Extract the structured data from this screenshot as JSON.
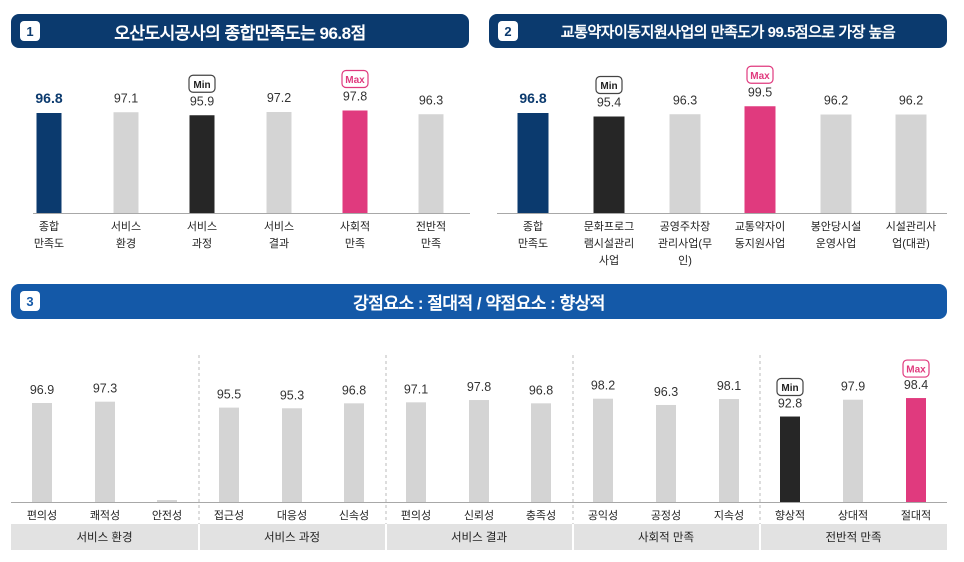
{
  "colors": {
    "banner_dark": "#0b3a6e",
    "banner_blue": "#1459a8",
    "overall_bar": "#0b3a6e",
    "min_bar": "#262626",
    "max_bar": "#e03a7e",
    "default_bar": "#d4d4d4",
    "baseline": "#a8a8a8",
    "group_band": "#e2e2e2"
  },
  "banners": [
    {
      "num": "1",
      "title": "오산도시공사의 종합만족도는 96.8점"
    },
    {
      "num": "2",
      "title": "교통약자이동지원사업의 만족도가 99.5점으로 가장 높음"
    },
    {
      "num": "3",
      "title": "강점요소 : 절대적 / 약점요소 : 향상적"
    }
  ],
  "badges": {
    "min": "Min",
    "max": "Max"
  },
  "chart_data": [
    {
      "type": "bar",
      "title": "오산도시공사의 종합만족도는 96.8점",
      "categories": [
        "종합\n만족도",
        "서비스\n환경",
        "서비스\n과정",
        "서비스\n결과",
        "사회적\n만족",
        "전반적\n만족"
      ],
      "values": [
        96.8,
        97.1,
        95.9,
        97.2,
        97.8,
        96.3
      ],
      "highlight": [
        "overall",
        "default",
        "min",
        "default",
        "max",
        "default"
      ],
      "xlabel": "",
      "ylabel": "",
      "grid": false
    },
    {
      "type": "bar",
      "title": "교통약자이동지원사업의 만족도가 99.5점으로 가장 높음",
      "categories": [
        "종합\n만족도",
        "문화프로그\n램시설관리\n사업",
        "공영주차장\n관리사업(무\n인)",
        "교통약자이\n동지원사업",
        "봉안당시설\n운영사업",
        "시설관리사\n업(대관)"
      ],
      "values": [
        96.8,
        95.4,
        96.3,
        99.5,
        96.2,
        96.2
      ],
      "highlight": [
        "overall",
        "min",
        "default",
        "max",
        "default",
        "default"
      ],
      "xlabel": "",
      "ylabel": "",
      "grid": false
    },
    {
      "type": "bar",
      "title": "강점요소 : 절대적 / 약점요소 : 향상적",
      "groups": [
        {
          "name": "서비스 환경",
          "categories": [
            "편의성",
            "쾌적성",
            "안전성"
          ],
          "values": [
            96.9,
            97.3,
            null
          ],
          "highlight": [
            "default",
            "default",
            "default"
          ]
        },
        {
          "name": "서비스 과정",
          "categories": [
            "접근성",
            "대응성",
            "신속성"
          ],
          "values": [
            95.5,
            95.3,
            96.8
          ],
          "highlight": [
            "default",
            "default",
            "default"
          ]
        },
        {
          "name": "서비스 결과",
          "categories": [
            "편의성",
            "신뢰성",
            "충족성"
          ],
          "values": [
            97.1,
            97.8,
            96.8
          ],
          "highlight": [
            "default",
            "default",
            "default"
          ]
        },
        {
          "name": "사회적 만족",
          "categories": [
            "공익성",
            "공정성",
            "지속성"
          ],
          "values": [
            98.2,
            96.3,
            98.1
          ],
          "highlight": [
            "default",
            "default",
            "default"
          ]
        },
        {
          "name": "전반적 만족",
          "categories": [
            "향상적",
            "상대적",
            "절대적"
          ],
          "values": [
            92.8,
            97.9,
            98.4
          ],
          "highlight": [
            "min",
            "default",
            "max"
          ]
        }
      ],
      "xlabel": "",
      "ylabel": "",
      "grid": false
    }
  ]
}
